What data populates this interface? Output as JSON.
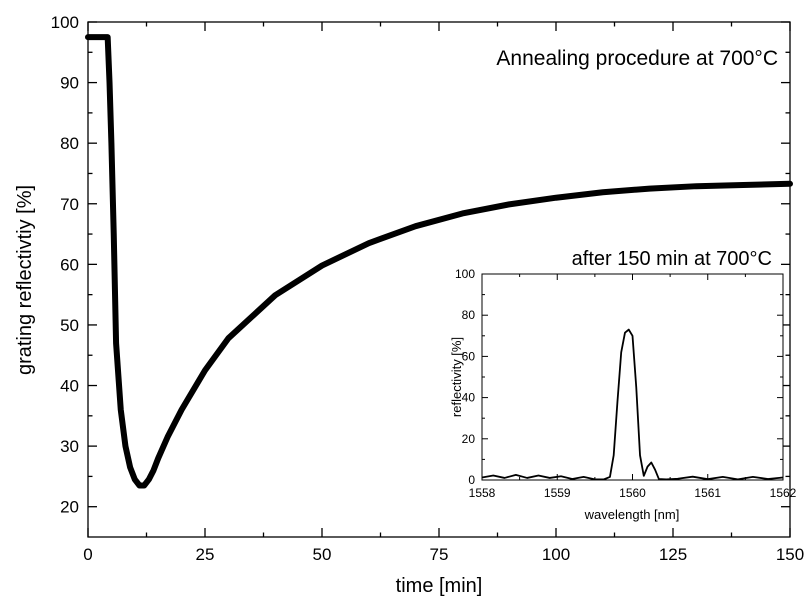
{
  "chart_data": [
    {
      "type": "line",
      "title": "",
      "annotation": "Annealing procedure at 700°C",
      "xlabel": "time [min]",
      "ylabel": "grating reflectivtiy [%]",
      "xlim": [
        0,
        150
      ],
      "ylim": [
        15,
        100
      ],
      "xticks": [
        0,
        25,
        50,
        75,
        100,
        125,
        150
      ],
      "xtick_labels": [
        "0",
        "25",
        "50",
        "75",
        "100",
        "125",
        "150"
      ],
      "yticks": [
        20,
        30,
        40,
        50,
        60,
        70,
        80,
        90,
        100
      ],
      "ytick_labels": [
        "20",
        "30",
        "40",
        "50",
        "60",
        "70",
        "80",
        "90",
        "100"
      ],
      "grid": false,
      "line_color": "#000000",
      "x": [
        0,
        2,
        3.5,
        4.2,
        4.6,
        5,
        5.5,
        6,
        7,
        8,
        9,
        10,
        11,
        12,
        13,
        14,
        15,
        17,
        20,
        25,
        30,
        40,
        50,
        60,
        70,
        80,
        90,
        100,
        110,
        120,
        130,
        140,
        150
      ],
      "y": [
        97.5,
        97.5,
        97.5,
        97.5,
        90,
        80,
        65,
        47,
        36,
        30,
        26.5,
        24.5,
        23.5,
        23.5,
        24.5,
        26,
        28,
        31.5,
        36,
        42.5,
        47.8,
        54.9,
        59.8,
        63.5,
        66.3,
        68.4,
        69.9,
        71,
        71.9,
        72.5,
        72.9,
        73.1,
        73.3
      ]
    },
    {
      "type": "line",
      "title": "after 150 min at 700°C",
      "xlabel": "wavelength [nm]",
      "ylabel": "reflectivity [%]",
      "xlim": [
        1558,
        1562
      ],
      "ylim": [
        0,
        100
      ],
      "xticks": [
        1558,
        1559,
        1560,
        1561,
        1562
      ],
      "xtick_labels": [
        "1558",
        "1559",
        "1560",
        "1561",
        "1562"
      ],
      "yticks": [
        0,
        20,
        40,
        60,
        80,
        100
      ],
      "ytick_labels": [
        "0",
        "20",
        "40",
        "60",
        "80",
        "100"
      ],
      "grid": false,
      "line_color": "#000000",
      "x": [
        1558,
        1558.15,
        1558.3,
        1558.45,
        1558.6,
        1558.75,
        1558.9,
        1559.05,
        1559.2,
        1559.35,
        1559.5,
        1559.62,
        1559.7,
        1559.75,
        1559.8,
        1559.85,
        1559.9,
        1559.95,
        1560,
        1560.05,
        1560.1,
        1560.15,
        1560.2,
        1560.25,
        1560.3,
        1560.35,
        1560.45,
        1560.6,
        1560.8,
        1561,
        1561.2,
        1561.4,
        1561.6,
        1561.8,
        1562
      ],
      "y": [
        1.2,
        2.2,
        1.0,
        2.5,
        1.0,
        2.2,
        1.0,
        1.8,
        0.5,
        1.5,
        0.3,
        0.3,
        1.5,
        12,
        38,
        62,
        71.5,
        73,
        70,
        45,
        12,
        2,
        6.5,
        8.5,
        5,
        0.5,
        0.3,
        0.6,
        1.6,
        0.4,
        1.5,
        0.3,
        1.5,
        0.5,
        1.2
      ]
    }
  ]
}
